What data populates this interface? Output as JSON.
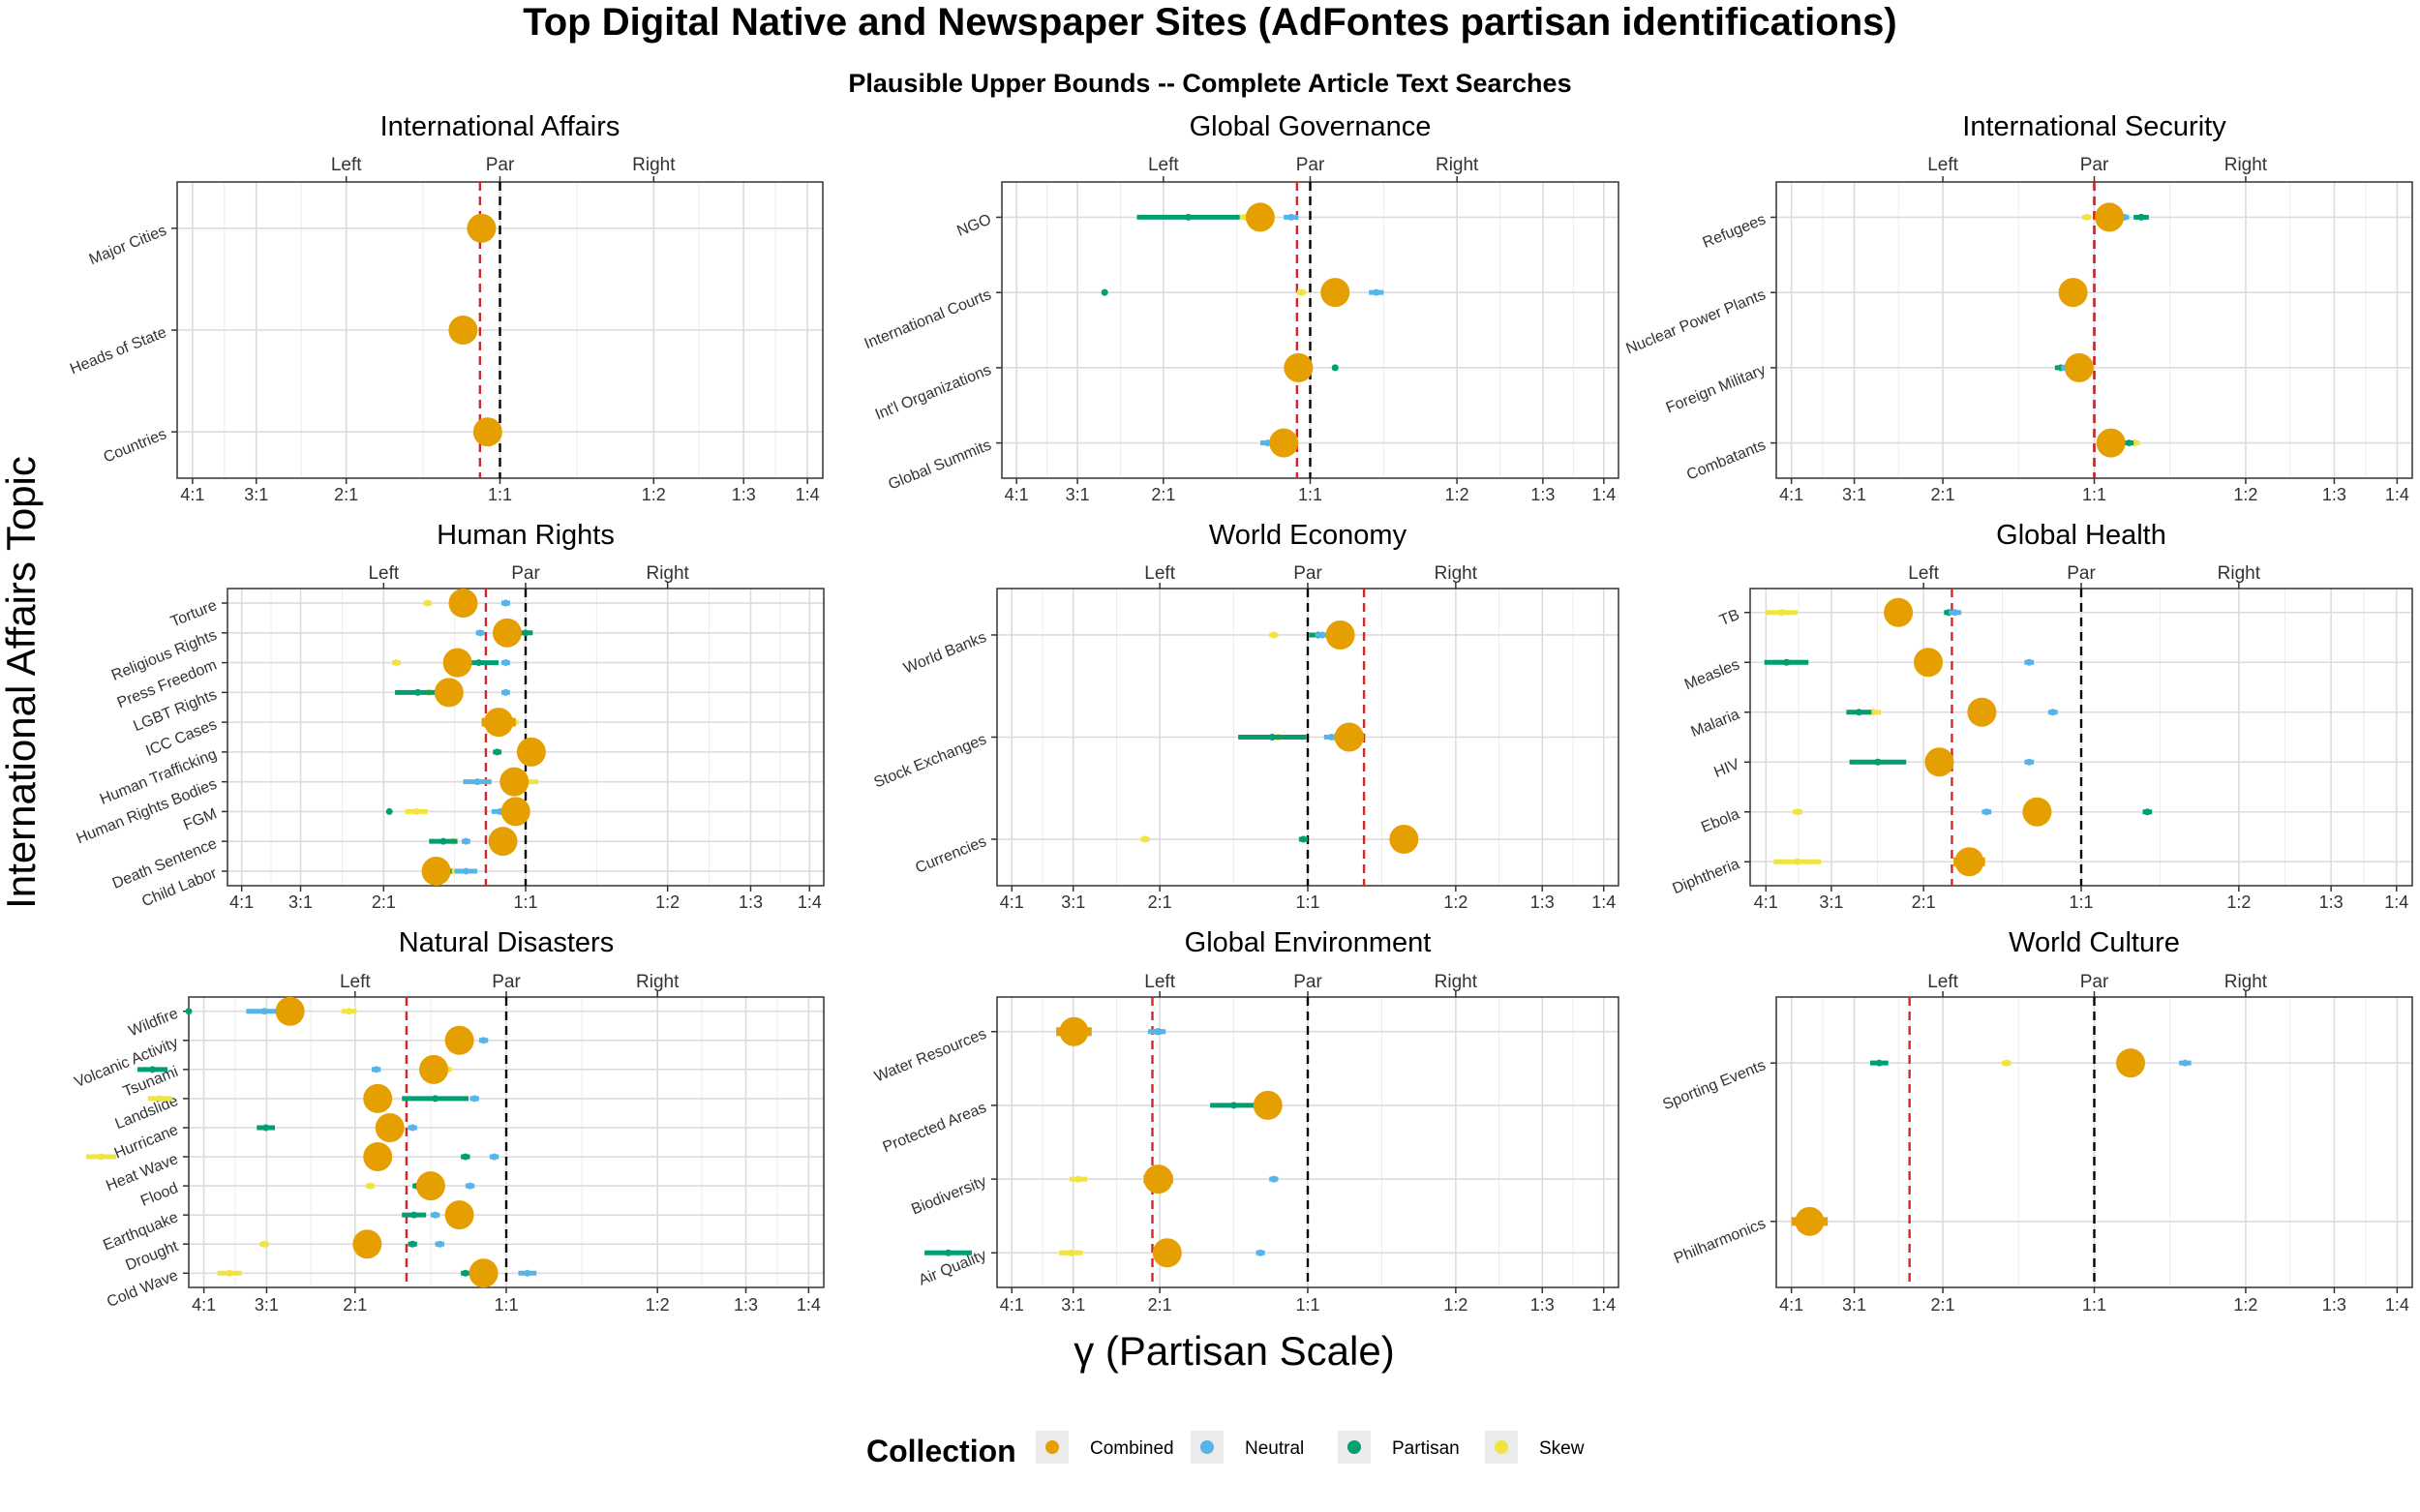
{
  "title": "Top Digital Native and Newspaper Sites (AdFontes partisan identifications)",
  "subtitle": "Plausible Upper Bounds -- Complete Article Text Searches",
  "ylabel": "International Affairs Topic",
  "xlabel": "γ (Partisan Scale)",
  "colors": {
    "Combined": "#E69F00",
    "Neutral": "#56B4E9",
    "Partisan": "#009E73",
    "Skew": "#F0E442",
    "par_line": "#000000",
    "combined_line": "#D62728"
  },
  "legend": {
    "title": "Collection",
    "entries": [
      "Combined",
      "Neutral",
      "Partisan",
      "Skew"
    ]
  },
  "chart_data": [
    {
      "type": "scatter",
      "title": "International Affairs",
      "x_scale": "log2 ratio",
      "xlim": [
        -2.1,
        2.1
      ],
      "x_ticks": [
        -2,
        -1.585,
        -1,
        0,
        1,
        1.585,
        2
      ],
      "x_tick_labels": [
        "4:1",
        "3:1",
        "2:1",
        "1:1",
        "1:2",
        "1:3",
        "1:4"
      ],
      "top_labels": [
        "Left",
        "Par",
        "Right"
      ],
      "categories": [
        "Major Cities",
        "Heads of State",
        "Countries"
      ],
      "combined_line": -0.13,
      "series": [
        {
          "name": "Combined",
          "values": [
            -0.12,
            -0.24,
            -0.08
          ],
          "errors": [
            0.06,
            0.05,
            0.06
          ]
        },
        {
          "name": "Neutral",
          "values": [
            -0.08,
            -0.21,
            -0.02
          ],
          "errors": [
            0.03,
            0.03,
            0.03
          ]
        },
        {
          "name": "Partisan",
          "values": [
            -0.09,
            -0.23,
            -0.04
          ],
          "errors": [
            0.02,
            0.02,
            0.02
          ]
        },
        {
          "name": "Skew",
          "values": [
            -0.13,
            -0.25,
            -0.11
          ],
          "errors": [
            0.03,
            0.03,
            0.03
          ]
        }
      ]
    },
    {
      "type": "scatter",
      "title": "Global Governance",
      "x_scale": "log2 ratio",
      "xlim": [
        -2.1,
        2.1
      ],
      "x_ticks": [
        -2,
        -1.585,
        -1,
        0,
        1,
        1.585,
        2
      ],
      "x_tick_labels": [
        "4:1",
        "3:1",
        "2:1",
        "1:1",
        "1:2",
        "1:3",
        "1:4"
      ],
      "top_labels": [
        "Left",
        "Par",
        "Right"
      ],
      "categories": [
        "NGO",
        "International Courts",
        "Int'l Organizations",
        "Global Summits"
      ],
      "combined_line": -0.09,
      "series": [
        {
          "name": "Combined",
          "values": [
            -0.34,
            0.17,
            -0.08,
            -0.18
          ],
          "errors": [
            0.08,
            0.06,
            0.05,
            0.05
          ]
        },
        {
          "name": "Neutral",
          "values": [
            -0.13,
            0.45,
            -0.06,
            -0.29
          ],
          "errors": [
            0.05,
            0.05,
            0.04,
            0.05
          ]
        },
        {
          "name": "Partisan",
          "values": [
            -0.83,
            -1.4,
            0.17,
            -0.19
          ],
          "errors": [
            0.35,
            0.01,
            0.02,
            0.02
          ]
        },
        {
          "name": "Skew",
          "values": [
            -0.44,
            -0.06,
            -0.13,
            -0.11
          ],
          "errors": [
            0.04,
            0.03,
            0.04,
            0.03
          ]
        }
      ]
    },
    {
      "type": "scatter",
      "title": "International Security",
      "x_scale": "log2 ratio",
      "xlim": [
        -2.1,
        2.1
      ],
      "x_ticks": [
        -2,
        -1.585,
        -1,
        0,
        1,
        1.585,
        2
      ],
      "x_tick_labels": [
        "4:1",
        "3:1",
        "2:1",
        "1:1",
        "1:2",
        "1:3",
        "1:4"
      ],
      "top_labels": [
        "Left",
        "Par",
        "Right"
      ],
      "categories": [
        "Refugees",
        "Nuclear Power Plants",
        "Foreign Military",
        "Combatants"
      ],
      "combined_line": 0.0,
      "series": [
        {
          "name": "Combined",
          "values": [
            0.1,
            -0.14,
            -0.1,
            0.11
          ],
          "errors": [
            0.05,
            0.04,
            0.06,
            0.05
          ]
        },
        {
          "name": "Neutral",
          "values": [
            0.2,
            -0.14,
            -0.19,
            0.16
          ],
          "errors": [
            0.03,
            0.03,
            0.03,
            0.03
          ]
        },
        {
          "name": "Partisan",
          "values": [
            0.31,
            -0.12,
            -0.22,
            0.23
          ],
          "errors": [
            0.05,
            0.02,
            0.04,
            0.03
          ]
        },
        {
          "name": "Skew",
          "values": [
            -0.05,
            -0.16,
            -0.13,
            0.27
          ],
          "errors": [
            0.03,
            0.03,
            0.03,
            0.03
          ]
        }
      ]
    },
    {
      "type": "scatter",
      "title": "Human Rights",
      "x_scale": "log2 ratio",
      "xlim": [
        -2.1,
        2.1
      ],
      "x_ticks": [
        -2,
        -1.585,
        -1,
        0,
        1,
        1.585,
        2
      ],
      "x_tick_labels": [
        "4:1",
        "3:1",
        "2:1",
        "1:1",
        "1:2",
        "1:3",
        "1:4"
      ],
      "top_labels": [
        "Left",
        "Par",
        "Right"
      ],
      "categories": [
        "Torture",
        "Religious Rights",
        "Press Freedom",
        "LGBT Rights",
        "ICC Cases",
        "Human Trafficking",
        "Human Rights Bodies",
        "FGM",
        "Death Sentence",
        "Child Labor"
      ],
      "combined_line": -0.28,
      "series": [
        {
          "name": "Combined",
          "values": [
            -0.44,
            -0.13,
            -0.48,
            -0.54,
            -0.19,
            0.04,
            -0.08,
            -0.07,
            -0.16,
            -0.63
          ],
          "errors": [
            0.04,
            0.04,
            0.04,
            0.04,
            0.12,
            0.04,
            0.04,
            0.04,
            0.04,
            0.05
          ]
        },
        {
          "name": "Neutral",
          "values": [
            -0.14,
            -0.32,
            -0.14,
            -0.14,
            -0.12,
            0.02,
            -0.34,
            -0.18,
            -0.42,
            -0.42
          ],
          "errors": [
            0.03,
            0.03,
            0.03,
            0.03,
            0.03,
            0.03,
            0.1,
            0.06,
            0.03,
            0.08
          ]
        },
        {
          "name": "Partisan",
          "values": [
            -0.14,
            0.0,
            -0.33,
            -0.76,
            -0.21,
            -0.2,
            -0.08,
            -0.96,
            -0.58,
            -0.55
          ],
          "errors": [
            0.03,
            0.05,
            0.14,
            0.16,
            0.03,
            0.03,
            0.06,
            0.01,
            0.1,
            0.03
          ]
        },
        {
          "name": "Skew",
          "values": [
            -0.69,
            -0.1,
            -0.91,
            -0.68,
            -0.08,
            -0.02,
            0.01,
            -0.77,
            -0.51,
            -0.52
          ],
          "errors": [
            0.03,
            0.03,
            0.03,
            0.03,
            0.03,
            0.03,
            0.08,
            0.08,
            0.03,
            0.03
          ]
        }
      ]
    },
    {
      "type": "scatter",
      "title": "World Economy",
      "x_scale": "log2 ratio",
      "xlim": [
        -2.1,
        2.1
      ],
      "x_ticks": [
        -2,
        -1.585,
        -1,
        0,
        1,
        1.585,
        2
      ],
      "x_tick_labels": [
        "4:1",
        "3:1",
        "2:1",
        "1:1",
        "1:2",
        "1:3",
        "1:4"
      ],
      "top_labels": [
        "Left",
        "Par",
        "Right"
      ],
      "categories": [
        "World Banks",
        "Stock Exchanges",
        "Currencies"
      ],
      "combined_line": 0.38,
      "series": [
        {
          "name": "Combined",
          "values": [
            0.22,
            0.28,
            0.65
          ],
          "errors": [
            0.05,
            0.1,
            0.05
          ]
        },
        {
          "name": "Neutral",
          "values": [
            0.1,
            0.16,
            0.68
          ],
          "errors": [
            0.05,
            0.05,
            0.04
          ]
        },
        {
          "name": "Partisan",
          "values": [
            0.07,
            -0.24,
            -0.03
          ],
          "errors": [
            0.06,
            0.23,
            0.03
          ]
        },
        {
          "name": "Skew",
          "values": [
            -0.23,
            -0.2,
            -1.1
          ],
          "errors": [
            0.03,
            0.04,
            0.03
          ]
        }
      ]
    },
    {
      "type": "scatter",
      "title": "Global Health",
      "x_scale": "log2 ratio",
      "xlim": [
        -2.1,
        2.1
      ],
      "x_ticks": [
        -2,
        -1.585,
        -1,
        0,
        1,
        1.585,
        2
      ],
      "x_tick_labels": [
        "4:1",
        "3:1",
        "2:1",
        "1:1",
        "1:2",
        "1:3",
        "1:4"
      ],
      "top_labels": [
        "Left",
        "Par",
        "Right"
      ],
      "categories": [
        "TB",
        "Measles",
        "Malaria",
        "HIV",
        "Ebola",
        "Diphtheria"
      ],
      "combined_line": -0.82,
      "series": [
        {
          "name": "Combined",
          "values": [
            -1.16,
            -0.97,
            -0.63,
            -0.9,
            -0.28,
            -0.71
          ],
          "errors": [
            0.06,
            0.05,
            0.05,
            0.05,
            0.05,
            0.1
          ]
        },
        {
          "name": "Neutral",
          "values": [
            -0.8,
            -0.33,
            -0.18,
            -0.33,
            -0.6,
            -0.68
          ],
          "errors": [
            0.04,
            0.03,
            0.03,
            0.03,
            0.03,
            0.05
          ]
        },
        {
          "name": "Partisan",
          "values": [
            -0.84,
            -1.87,
            -1.41,
            -1.29,
            0.42,
            -0.68
          ],
          "errors": [
            0.03,
            0.14,
            0.08,
            0.18,
            0.03,
            0.03
          ]
        },
        {
          "name": "Skew",
          "values": [
            -1.9,
            -1.86,
            -1.32,
            -1.29,
            -1.8,
            -1.8
          ],
          "errors": [
            0.1,
            0.1,
            0.05,
            0.05,
            0.03,
            0.15
          ]
        }
      ]
    },
    {
      "type": "scatter",
      "title": "Natural Disasters",
      "x_scale": "log2 ratio",
      "xlim": [
        -2.1,
        2.1
      ],
      "x_ticks": [
        -2,
        -1.585,
        -1,
        0,
        1,
        1.585,
        2
      ],
      "x_tick_labels": [
        "4:1",
        "3:1",
        "2:1",
        "1:1",
        "1:2",
        "1:3",
        "1:4"
      ],
      "top_labels": [
        "Left",
        "Par",
        "Right"
      ],
      "categories": [
        "Wildfire",
        "Volcanic Activity",
        "Tsunami",
        "Landslide",
        "Hurricane",
        "Heat Wave",
        "Flood",
        "Earthquake",
        "Drought",
        "Cold Wave"
      ],
      "combined_line": -0.66,
      "series": [
        {
          "name": "Combined",
          "values": [
            -1.43,
            -0.31,
            -0.48,
            -0.85,
            -0.77,
            -0.85,
            -0.5,
            -0.31,
            -0.92,
            -0.15
          ],
          "errors": [
            0.08,
            0.05,
            0.05,
            0.06,
            0.08,
            0.06,
            0.05,
            0.05,
            0.05,
            0.05
          ]
        },
        {
          "name": "Neutral",
          "values": [
            -1.6,
            -0.15,
            -0.86,
            -0.21,
            -0.62,
            -0.08,
            -0.24,
            -0.47,
            -0.44,
            0.14
          ],
          "errors": [
            0.12,
            0.03,
            0.03,
            0.03,
            0.03,
            0.03,
            0.03,
            0.03,
            0.03,
            0.06
          ]
        },
        {
          "name": "Partisan",
          "values": [
            -2.1,
            -0.31,
            -2.34,
            -0.47,
            -1.59,
            -0.27,
            -0.59,
            -0.61,
            -0.62,
            -0.27
          ],
          "errors": [
            0.01,
            0.03,
            0.1,
            0.22,
            0.06,
            0.03,
            0.03,
            0.08,
            0.03,
            0.03
          ]
        },
        {
          "name": "Skew",
          "values": [
            -1.04,
            -0.27,
            -0.39,
            -2.29,
            -0.75,
            -2.68,
            -0.9,
            -0.34,
            -1.6,
            -1.83
          ],
          "errors": [
            0.05,
            0.03,
            0.03,
            0.08,
            0.03,
            0.1,
            0.03,
            0.03,
            0.03,
            0.08
          ]
        }
      ]
    },
    {
      "type": "scatter",
      "title": "Global Environment",
      "x_scale": "log2 ratio",
      "xlim": [
        -2.1,
        2.1
      ],
      "x_ticks": [
        -2,
        -1.585,
        -1,
        0,
        1,
        1.585,
        2
      ],
      "x_tick_labels": [
        "4:1",
        "3:1",
        "2:1",
        "1:1",
        "1:2",
        "1:3",
        "1:4"
      ],
      "top_labels": [
        "Left",
        "Par",
        "Right"
      ],
      "categories": [
        "Water Resources",
        "Protected Areas",
        "Biodiversity",
        "Air Quality"
      ],
      "combined_line": -1.05,
      "series": [
        {
          "name": "Combined",
          "values": [
            -1.58,
            -0.27,
            -1.01,
            -0.95
          ],
          "errors": [
            0.12,
            0.06,
            0.1,
            0.05
          ]
        },
        {
          "name": "Neutral",
          "values": [
            -1.02,
            -0.28,
            -0.23,
            -0.32
          ],
          "errors": [
            0.06,
            0.04,
            0.03,
            0.03
          ]
        },
        {
          "name": "Partisan",
          "values": [
            -1.01,
            -0.5,
            -1.0,
            -2.43
          ],
          "errors": [
            0.03,
            0.16,
            0.03,
            0.16
          ]
        },
        {
          "name": "Skew",
          "values": [
            -1.59,
            -0.22,
            -1.55,
            -1.6
          ],
          "errors": [
            0.03,
            0.03,
            0.06,
            0.08
          ]
        }
      ]
    },
    {
      "type": "scatter",
      "title": "World Culture",
      "x_scale": "log2 ratio",
      "xlim": [
        -2.1,
        2.1
      ],
      "x_ticks": [
        -2,
        -1.585,
        -1,
        0,
        1,
        1.585,
        2
      ],
      "x_tick_labels": [
        "4:1",
        "3:1",
        "2:1",
        "1:1",
        "1:2",
        "1:3",
        "1:4"
      ],
      "top_labels": [
        "Left",
        "Par",
        "Right"
      ],
      "categories": [
        "Sporting Events",
        "Philharmonics"
      ],
      "combined_line": -1.22,
      "series": [
        {
          "name": "Combined",
          "values": [
            0.24,
            -1.88
          ],
          "errors": [
            0.06,
            0.12
          ]
        },
        {
          "name": "Neutral",
          "values": [
            0.6,
            null
          ],
          "errors": [
            0.04,
            0
          ]
        },
        {
          "name": "Partisan",
          "values": [
            -1.42,
            null
          ],
          "errors": [
            0.06,
            0
          ]
        },
        {
          "name": "Skew",
          "values": [
            -0.58,
            null
          ],
          "errors": [
            0.03,
            0
          ]
        }
      ]
    }
  ]
}
